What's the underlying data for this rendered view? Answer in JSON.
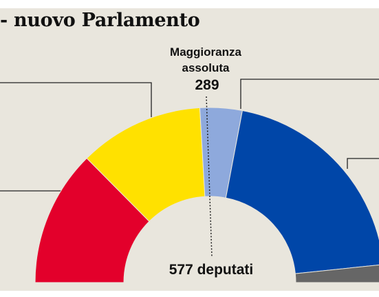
{
  "title": "- nuovo Parlamento",
  "colors": {
    "background": "#e9e6dd",
    "red": "#e3002b",
    "yellow": "#ffe100",
    "light_blue": "#8ea9dc",
    "blue": "#0046a8",
    "grey": "#666666",
    "leader": "#222222"
  },
  "chart_data": {
    "type": "hemicycle",
    "total": 577,
    "total_label": "577 deputati",
    "majority": {
      "value": 289,
      "label_line1": "Maggioranza",
      "label_line2": "assoluta",
      "value_label": "289"
    },
    "segments": [
      {
        "color": "#e3002b",
        "seats": 145
      },
      {
        "color": "#ffe100",
        "seats": 133
      },
      {
        "color": "#8ea9dc",
        "seats": 45
      },
      {
        "color": "#0046a8",
        "seats": 235
      },
      {
        "color": "#666666",
        "seats": 19
      }
    ]
  }
}
